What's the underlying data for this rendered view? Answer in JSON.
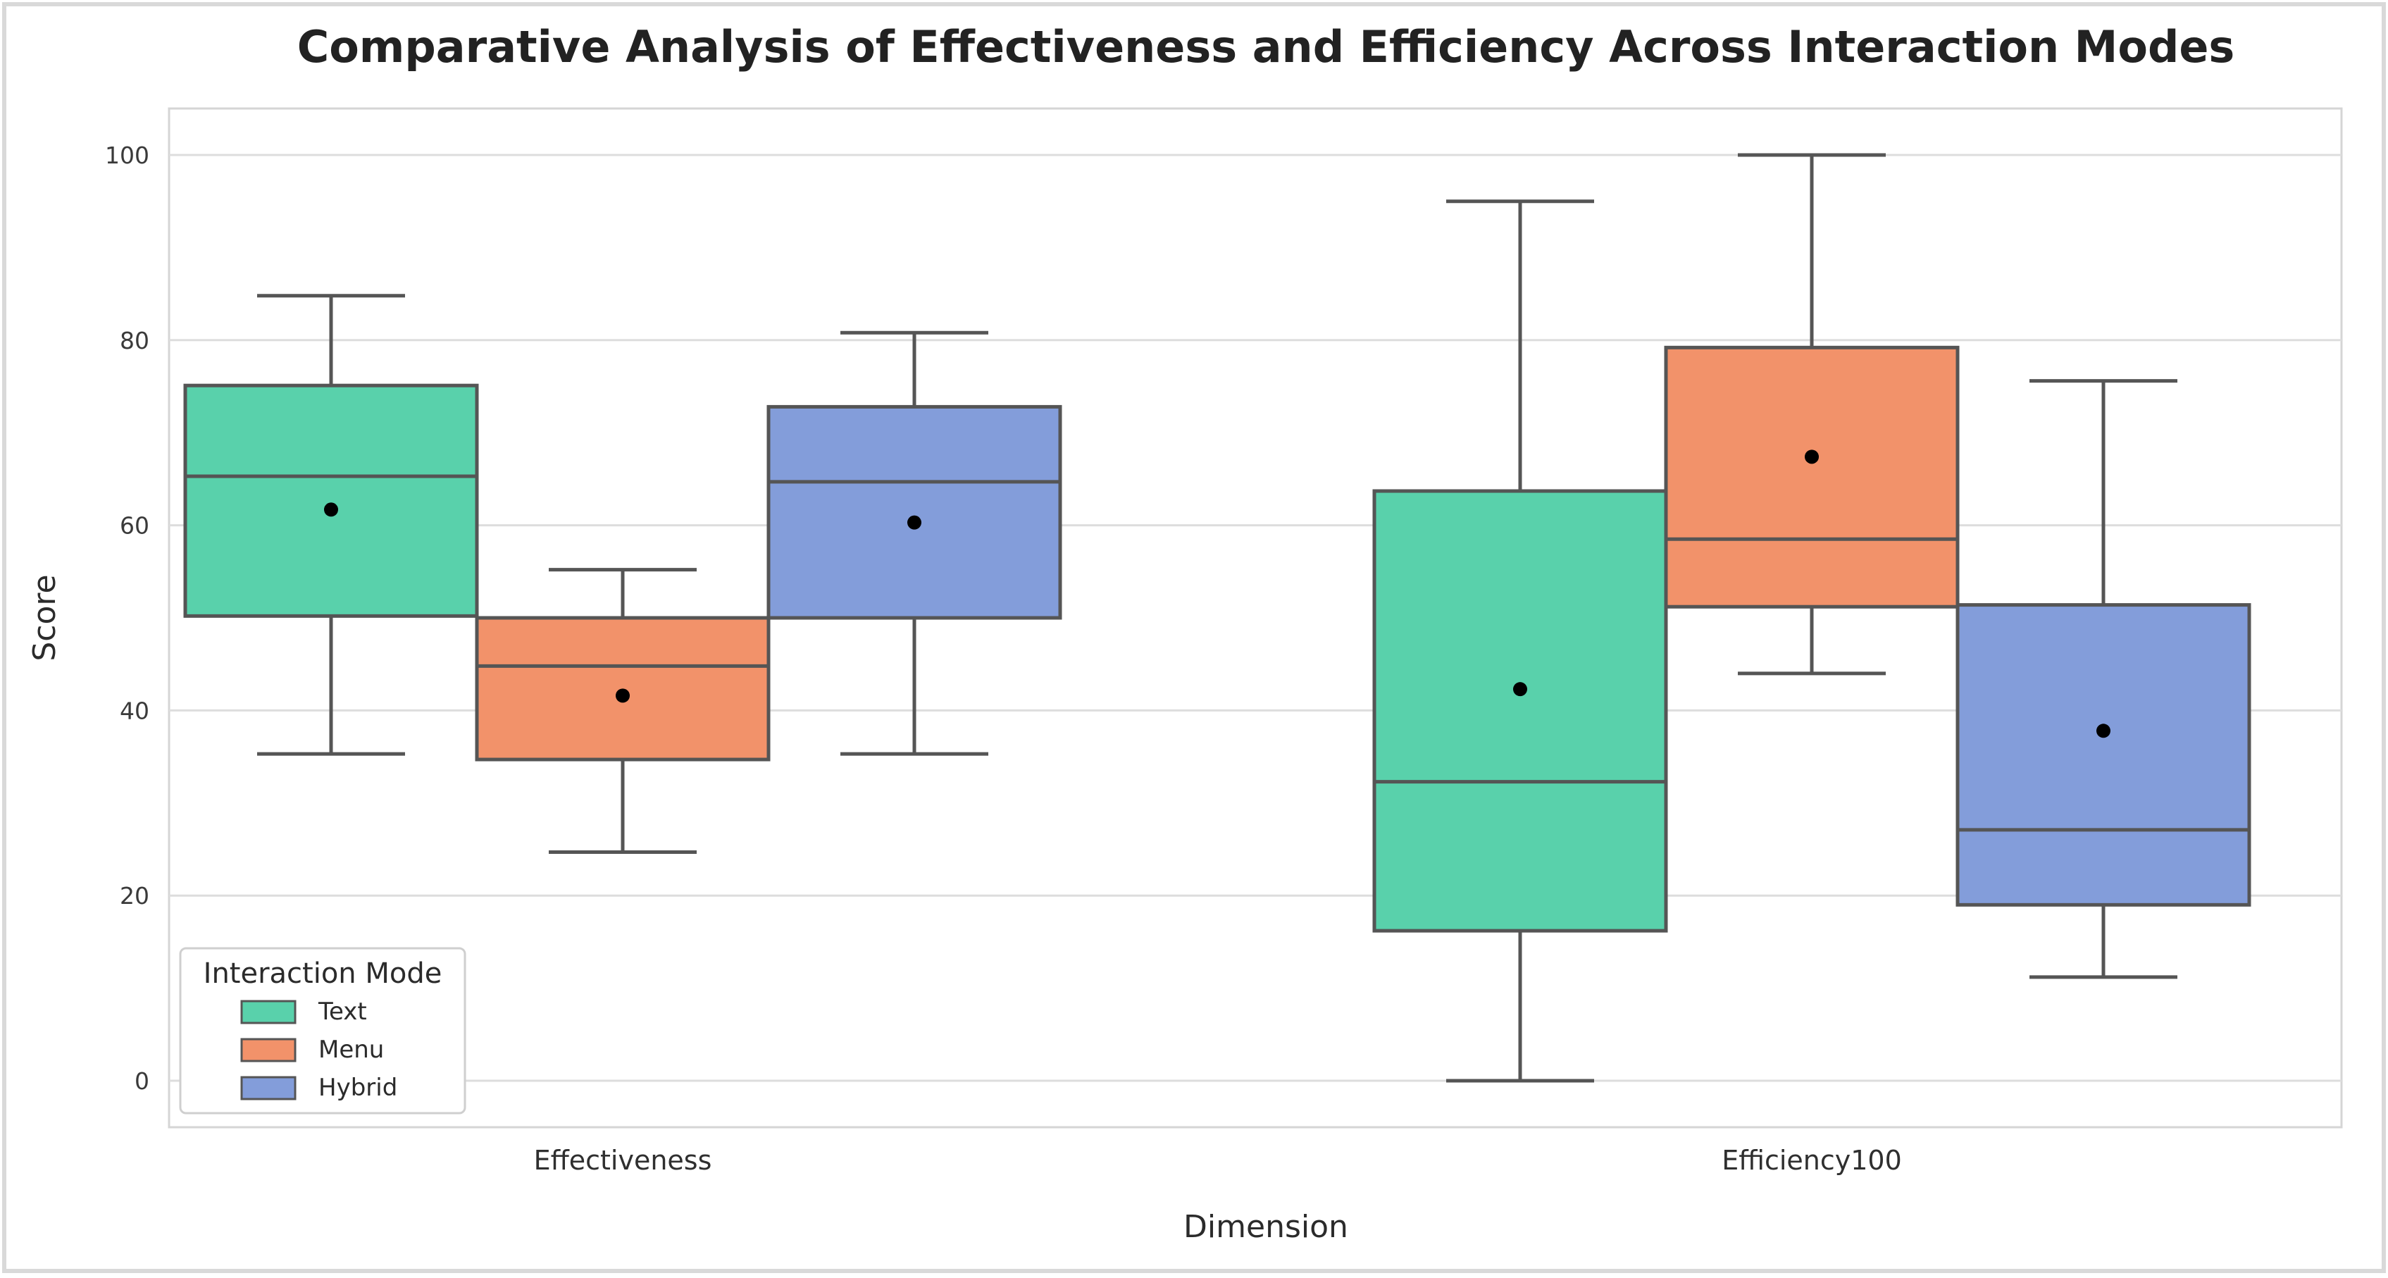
{
  "chart_data": {
    "type": "box",
    "title": "Comparative Analysis of Effectiveness and Efficiency Across Interaction Modes",
    "xlabel": "Dimension",
    "ylabel": "Score",
    "ylim": [
      -5,
      105
    ],
    "yticks": [
      0,
      20,
      40,
      60,
      80,
      100
    ],
    "grid": true,
    "categories": [
      "Effectiveness",
      "Efficiency100"
    ],
    "legend": {
      "title": "Interaction Mode",
      "placement": "bottom-left"
    },
    "series": [
      {
        "name": "Text",
        "color": "#59d1ab",
        "boxes": [
          {
            "category": "Effectiveness",
            "min": 35.3,
            "q1": 50.2,
            "median": 65.3,
            "q3": 75.1,
            "max": 84.8,
            "mean": 61.7
          },
          {
            "category": "Efficiency100",
            "min": 0.0,
            "q1": 16.2,
            "median": 32.3,
            "q3": 63.7,
            "max": 95.0,
            "mean": 42.3
          }
        ]
      },
      {
        "name": "Menu",
        "color": "#f2926a",
        "boxes": [
          {
            "category": "Effectiveness",
            "min": 24.7,
            "q1": 34.7,
            "median": 44.8,
            "q3": 50.0,
            "max": 55.2,
            "mean": 41.6
          },
          {
            "category": "Efficiency100",
            "min": 44.0,
            "q1": 51.2,
            "median": 58.5,
            "q3": 79.2,
            "max": 100.0,
            "mean": 67.4
          }
        ]
      },
      {
        "name": "Hybrid",
        "color": "#839dda",
        "boxes": [
          {
            "category": "Effectiveness",
            "min": 35.3,
            "q1": 50.0,
            "median": 64.7,
            "q3": 72.8,
            "max": 80.8,
            "mean": 60.3
          },
          {
            "category": "Efficiency100",
            "min": 11.2,
            "q1": 19.0,
            "median": 27.1,
            "q3": 51.4,
            "max": 75.6,
            "mean": 37.8
          }
        ]
      }
    ]
  }
}
